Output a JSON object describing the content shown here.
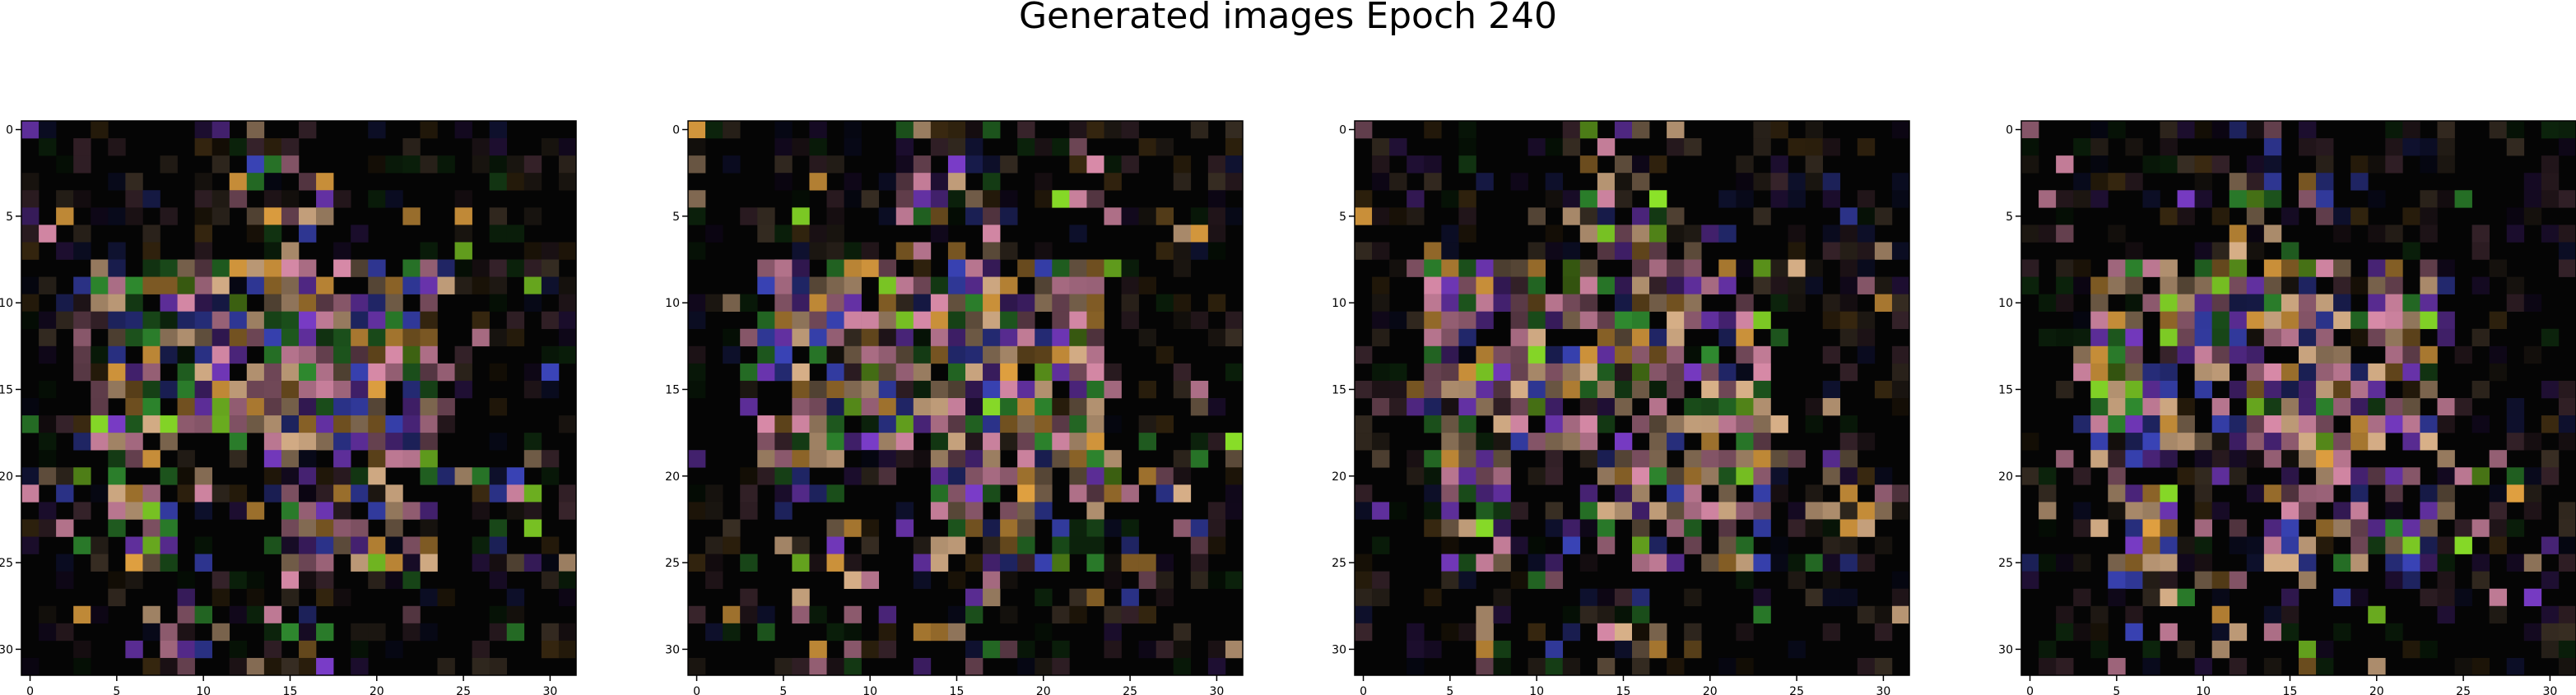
{
  "title": "Generated images Epoch 240",
  "chart_data": {
    "type": "heatmap",
    "title": "Generated images Epoch 240",
    "image_grid": "32x32 RGB",
    "panel_count": 4,
    "axes": {
      "xticks": [
        0,
        5,
        10,
        15,
        20,
        25,
        30
      ],
      "yticks": [
        0,
        5,
        10,
        15,
        20,
        25,
        30
      ],
      "xlim": [
        -0.5,
        31.5
      ],
      "ylim": [
        31.5,
        -0.5
      ]
    },
    "panels": [
      {
        "variant": 0
      },
      {
        "variant": 1
      },
      {
        "variant": 2
      },
      {
        "variant": 3
      }
    ],
    "palette": {
      "background": "#050505",
      "purple": "#7a3cc8",
      "lime": "#8ee62a",
      "tan": "#d8b088",
      "pink": "#d88aa8",
      "blue": "#3a44b8",
      "green": "#2f8a2f",
      "orange": "#e0a040"
    }
  }
}
